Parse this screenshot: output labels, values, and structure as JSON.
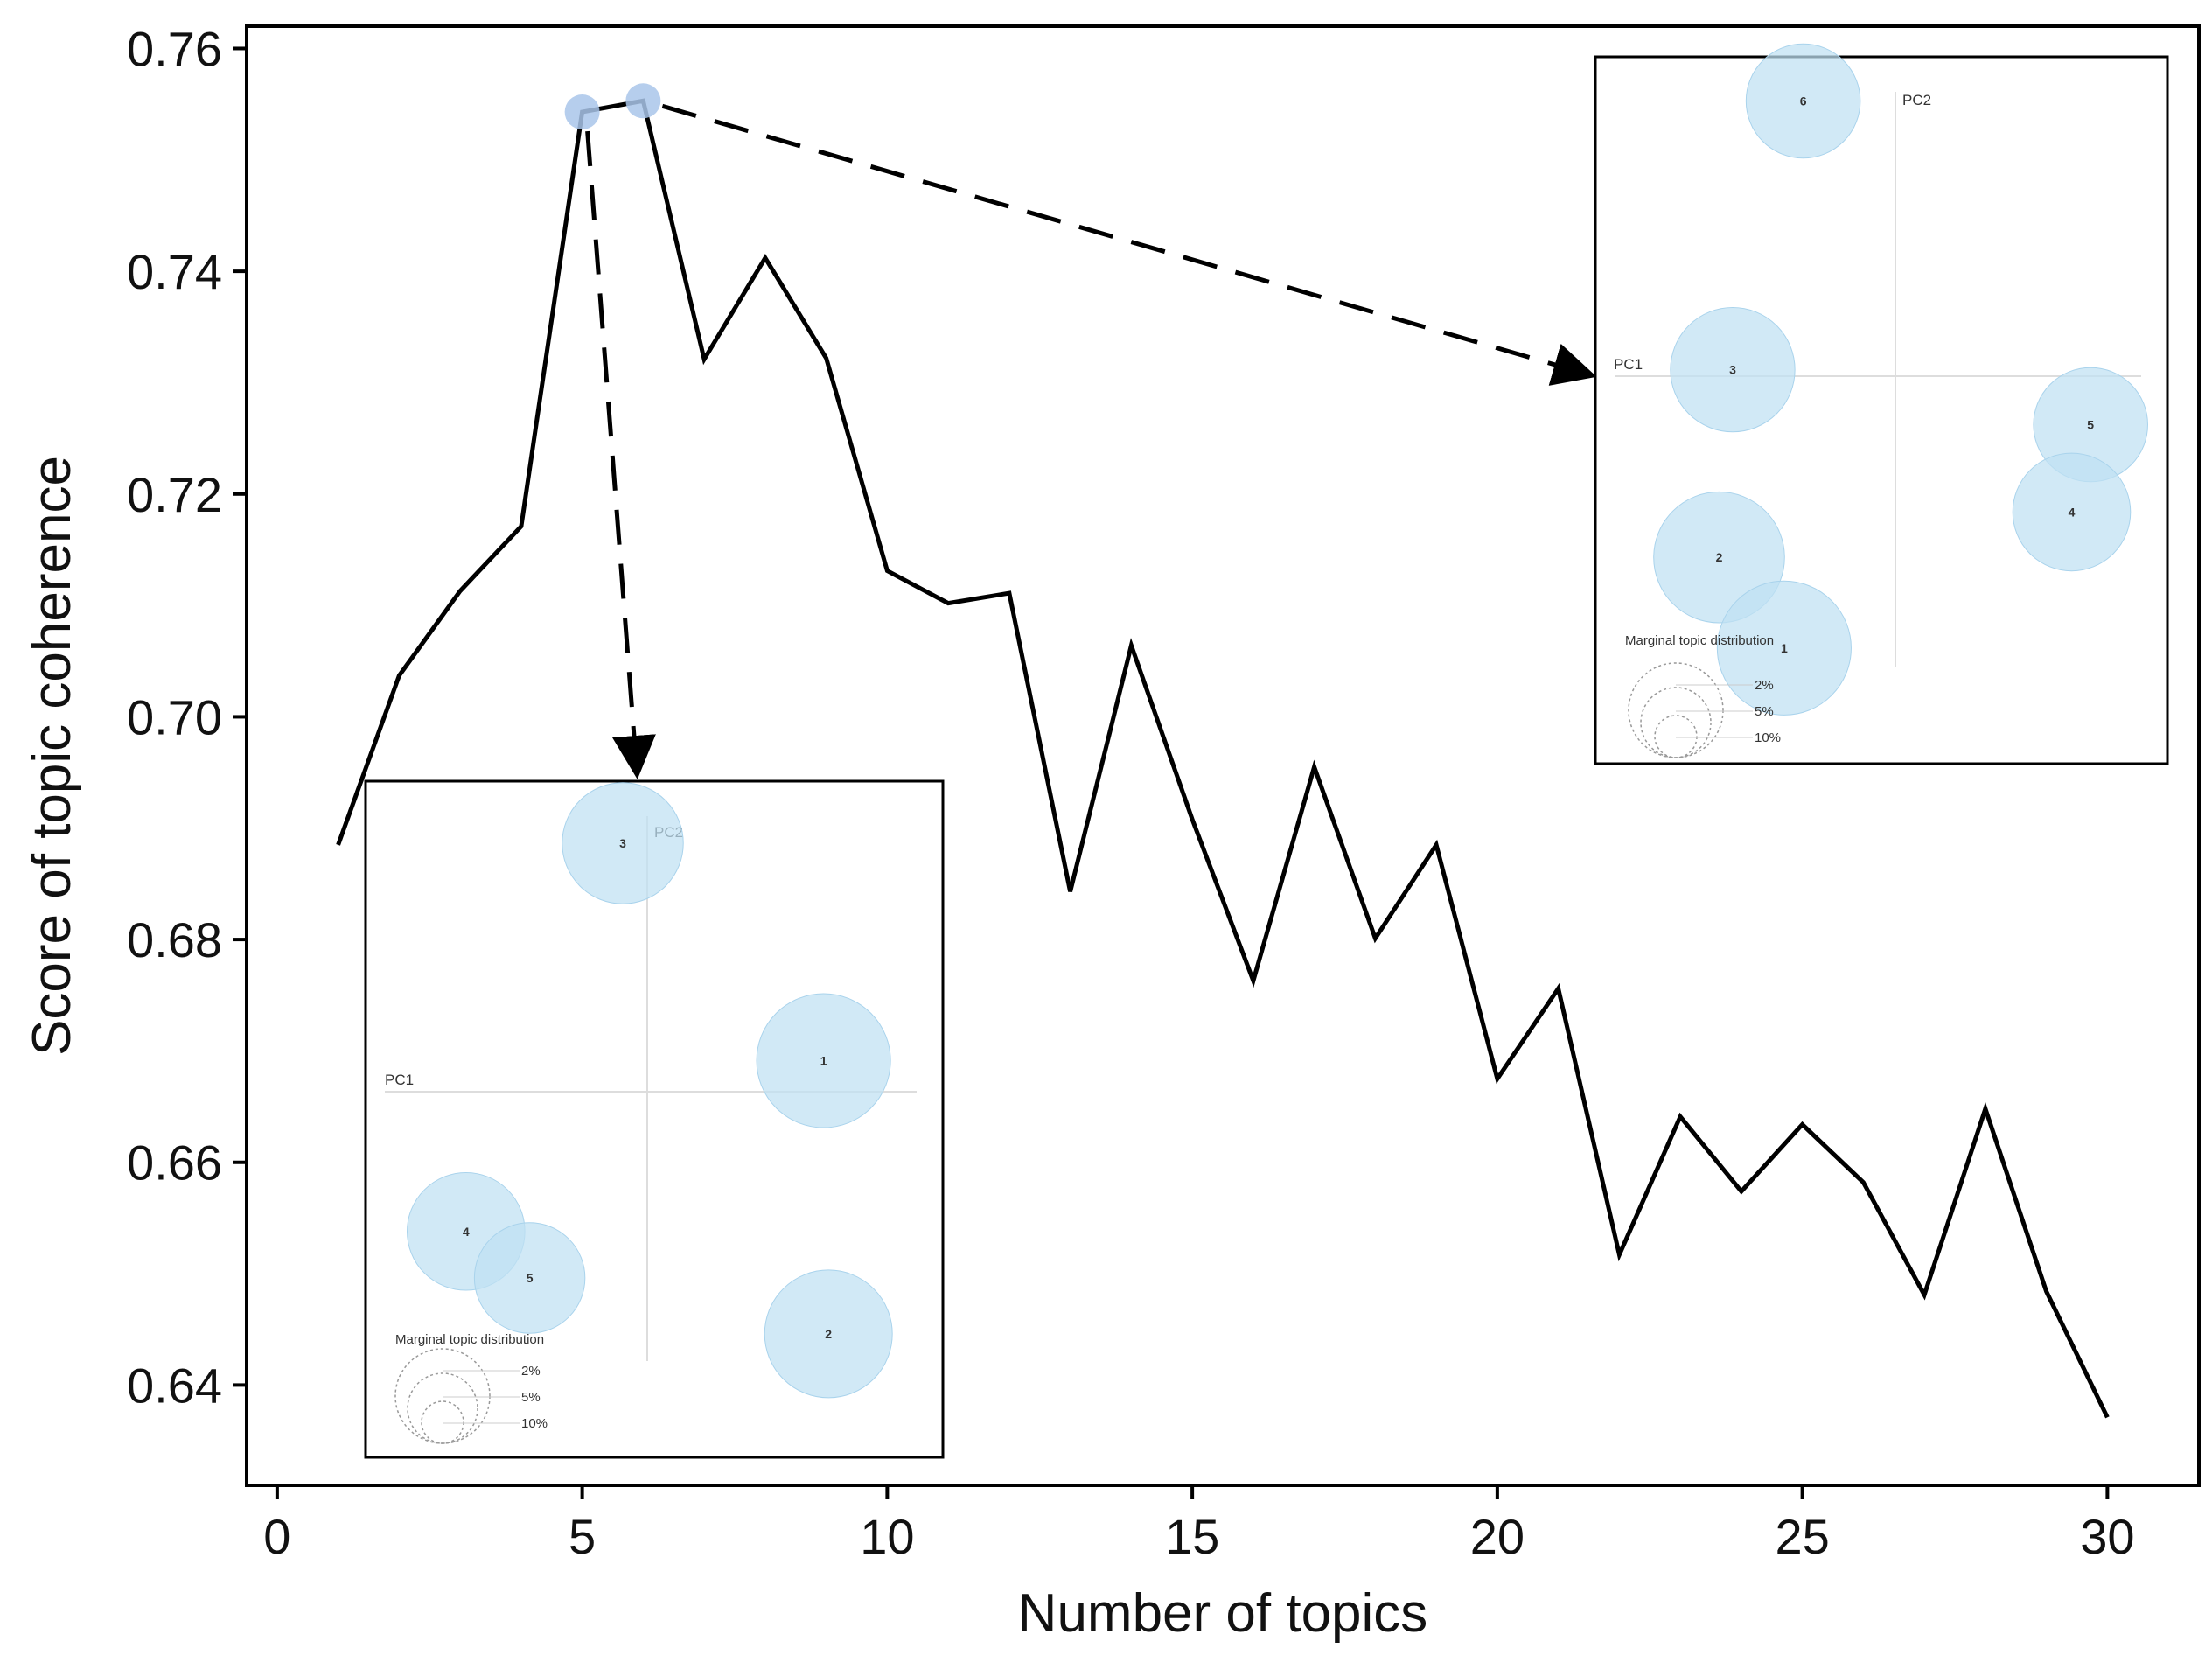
{
  "chart_data": {
    "type": "line",
    "title": "",
    "xlabel": "Number of topics",
    "ylabel": "Score of topic coherence",
    "xlim": [
      -0.5,
      31.5
    ],
    "ylim": [
      0.631,
      0.762
    ],
    "xticks": [
      0,
      5,
      10,
      15,
      20,
      25,
      30
    ],
    "xtick_labels": [
      "0",
      "5",
      "10",
      "15",
      "20",
      "25",
      "30"
    ],
    "yticks": [
      0.64,
      0.66,
      0.68,
      0.7,
      0.72,
      0.74,
      0.76
    ],
    "ytick_labels": [
      "0.64",
      "0.66",
      "0.68",
      "0.70",
      "0.72",
      "0.74",
      "0.76"
    ],
    "grid": false,
    "series": [
      {
        "name": "coherence",
        "color": "#000000",
        "x": [
          1,
          2,
          3,
          4,
          5,
          6,
          7,
          8,
          9,
          10,
          11,
          12,
          13,
          14,
          15,
          16,
          17,
          18,
          19,
          20,
          21,
          22,
          23,
          24,
          25,
          26,
          27,
          28,
          29,
          30
        ],
        "values": [
          0.6885,
          0.7037,
          0.7113,
          0.7171,
          0.7543,
          0.7553,
          0.7321,
          0.7412,
          0.7322,
          0.7131,
          0.7102,
          0.7111,
          0.6843,
          0.7064,
          0.6908,
          0.6763,
          0.6955,
          0.6801,
          0.6885,
          0.6675,
          0.6756,
          0.6517,
          0.6641,
          0.6574,
          0.6634,
          0.6582,
          0.6481,
          0.6648,
          0.6484,
          0.6371
        ]
      }
    ],
    "highlighted_points": [
      {
        "x": 5,
        "y": 0.7543,
        "color": "#a9c6ea"
      },
      {
        "x": 6,
        "y": 0.7553,
        "color": "#a9c6ea"
      }
    ],
    "insets": [
      {
        "name": "inset-5-topics",
        "source_x": 5,
        "pc1_label": "PC1",
        "pc2_label": "PC2",
        "legend_title": "Marginal topic distribution",
        "legend_labels": [
          "2%",
          "5%",
          "10%"
        ],
        "bubble_color": "#bfe0f3",
        "topics": [
          {
            "label": "3",
            "pc1": -0.1,
            "pc2": 0.8,
            "share": 0.18
          },
          {
            "label": "1",
            "pc1": 0.72,
            "pc2": 0.1,
            "share": 0.22
          },
          {
            "label": "4",
            "pc1": -0.74,
            "pc2": -0.45,
            "share": 0.17
          },
          {
            "label": "5",
            "pc1": -0.48,
            "pc2": -0.6,
            "share": 0.15
          },
          {
            "label": "2",
            "pc1": 0.74,
            "pc2": -0.78,
            "share": 0.2
          }
        ]
      },
      {
        "name": "inset-6-topics",
        "source_x": 6,
        "pc1_label": "PC1",
        "pc2_label": "PC2",
        "legend_title": "Marginal topic distribution",
        "legend_labels": [
          "2%",
          "5%",
          "10%"
        ],
        "bubble_color": "#bfe0f3",
        "topics": [
          {
            "label": "6",
            "pc1": -0.34,
            "pc2": 0.85,
            "share": 0.16
          },
          {
            "label": "3",
            "pc1": -0.6,
            "pc2": 0.02,
            "share": 0.19
          },
          {
            "label": "5",
            "pc1": 0.72,
            "pc2": -0.15,
            "share": 0.16
          },
          {
            "label": "4",
            "pc1": 0.65,
            "pc2": -0.42,
            "share": 0.17
          },
          {
            "label": "2",
            "pc1": -0.65,
            "pc2": -0.56,
            "share": 0.21
          },
          {
            "label": "1",
            "pc1": -0.41,
            "pc2": -0.84,
            "share": 0.22
          }
        ]
      }
    ]
  }
}
